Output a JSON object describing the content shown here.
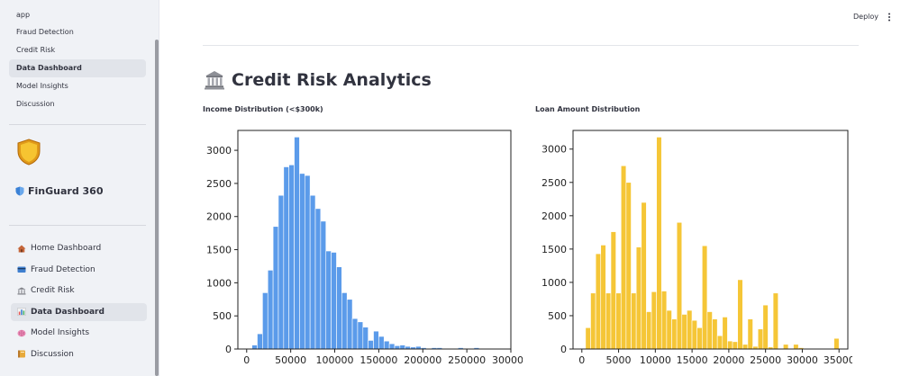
{
  "sidebar": {
    "pages": [
      {
        "label": "app",
        "active": false
      },
      {
        "label": "Fraud Detection",
        "active": false
      },
      {
        "label": "Credit Risk",
        "active": false
      },
      {
        "label": "Data Dashboard",
        "active": true
      },
      {
        "label": "Model Insights",
        "active": false
      },
      {
        "label": "Discussion",
        "active": false
      }
    ],
    "brand": "FinGuard 360",
    "nav": [
      {
        "label": "Home Dashboard",
        "icon": "house-icon",
        "active": false
      },
      {
        "label": "Fraud Detection",
        "icon": "credit-card-icon",
        "active": false
      },
      {
        "label": "Credit Risk",
        "icon": "bank-icon",
        "active": false
      },
      {
        "label": "Data Dashboard",
        "icon": "bar-chart-icon",
        "active": true
      },
      {
        "label": "Model Insights",
        "icon": "brain-icon",
        "active": false
      },
      {
        "label": "Discussion",
        "icon": "book-icon",
        "active": false
      }
    ]
  },
  "header": {
    "deploy_label": "Deploy"
  },
  "main": {
    "title": "Credit Risk Analytics"
  },
  "chart_data": [
    {
      "type": "bar",
      "title": "Income Distribution (<$300k)",
      "color": "#5b9bea",
      "bin_start": 0,
      "bin_width": 6000,
      "xlim": [
        -10000,
        300000
      ],
      "ylim": [
        0,
        3300
      ],
      "xticks": [
        0,
        50000,
        100000,
        150000,
        200000,
        250000,
        300000
      ],
      "yticks": [
        0,
        500,
        1000,
        1500,
        2000,
        2500,
        3000
      ],
      "values": [
        0,
        60,
        230,
        850,
        1190,
        1850,
        2320,
        2750,
        2780,
        3200,
        2650,
        2620,
        2320,
        2120,
        1930,
        1480,
        1460,
        1240,
        850,
        750,
        460,
        410,
        330,
        130,
        270,
        190,
        120,
        80,
        50,
        60,
        40,
        30,
        40,
        20,
        0,
        20,
        20,
        0,
        0,
        0,
        20,
        0,
        0,
        20,
        10,
        0,
        0,
        0,
        0,
        0
      ]
    },
    {
      "type": "bar",
      "title": "Loan Amount Distribution",
      "color": "#f5c637",
      "bin_start": 500,
      "bin_width": 690,
      "xlim": [
        -1200,
        36200
      ],
      "ylim": [
        0,
        3280
      ],
      "xticks": [
        0,
        5000,
        10000,
        15000,
        20000,
        25000,
        30000,
        35000
      ],
      "yticks": [
        0,
        500,
        1000,
        1500,
        2000,
        2500,
        3000
      ],
      "values": [
        320,
        840,
        1430,
        1560,
        840,
        1760,
        840,
        2750,
        2500,
        840,
        1530,
        2200,
        560,
        860,
        3180,
        870,
        580,
        450,
        1900,
        520,
        580,
        430,
        320,
        1550,
        560,
        450,
        200,
        480,
        120,
        110,
        1040,
        70,
        450,
        40,
        300,
        660,
        30,
        840,
        0,
        70,
        0,
        70,
        20,
        0,
        0,
        0,
        0,
        0,
        0,
        160
      ]
    }
  ]
}
